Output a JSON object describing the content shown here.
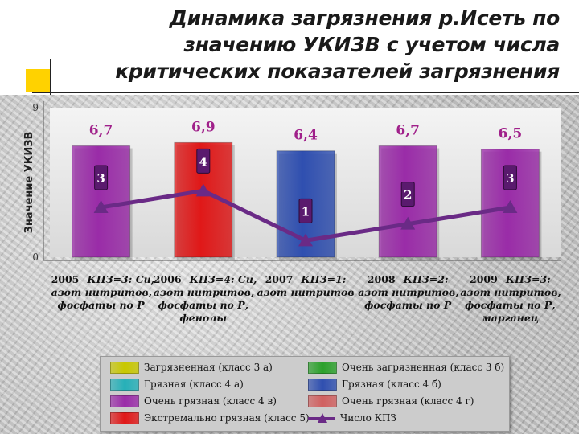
{
  "title": {
    "line1": "Динамика загрязнения р.Исеть по",
    "line2": "значению УКИЗВ с учетом числа",
    "line3": "критических показателей загрязнения"
  },
  "colors": {
    "accent_yellow": "#ffd200",
    "class3a": "#c8c800",
    "class3b": "#2aa02a",
    "class4a": "#26b0b8",
    "class4b": "#2f4fb0",
    "class4v": "#9a2ca8",
    "class4g": "#d06060",
    "class5": "#e01818",
    "kpz_line": "#6a2a86",
    "value_label": "#a0208a"
  },
  "chart_data": {
    "type": "bar",
    "title": "Динамика загрязнения р.Исеть по значению УКИЗВ с учетом числа критических показателей загрязнения",
    "ylabel": "Значение УКИЗВ",
    "ylim": [
      0,
      9
    ],
    "yticks": [
      "0",
      "9"
    ],
    "categories": [
      "2005",
      "2006",
      "2007",
      "2008",
      "2009"
    ],
    "series": [
      {
        "values": [
          6.7,
          6.9,
          6.4,
          6.7,
          6.5
        ],
        "value_labels": [
          "6,7",
          "6,9",
          "6,4",
          "6,7",
          "6,5"
        ],
        "bar_colors": [
          "#9a2ca8",
          "#e01818",
          "#2f4fb0",
          "#9a2ca8",
          "#9a2ca8"
        ]
      },
      {
        "name": "Число КПЗ",
        "type": "line",
        "values": [
          3,
          4,
          1,
          2,
          3
        ],
        "value_labels": [
          "3",
          "4",
          "1",
          "2",
          "3"
        ]
      }
    ],
    "annotations": [
      {
        "year": "2005",
        "text": [
          "КПЗ=3: Cu,",
          "азот нитритов,",
          "фосфаты по Р"
        ]
      },
      {
        "year": "2006",
        "text": [
          "КПЗ=4: Cu,",
          "азот нитритов,",
          "фосфаты по Р,",
          "фенолы"
        ]
      },
      {
        "year": "2007",
        "text": [
          "КПЗ=1:",
          "азот нитритов"
        ]
      },
      {
        "year": "2008",
        "text": [
          "КПЗ=2:",
          "азот нитритов,",
          "фосфаты по Р"
        ]
      },
      {
        "year": "2009",
        "text": [
          "КПЗ=3:",
          "азот нитритов,",
          "фосфаты по Р,",
          "марганец"
        ]
      }
    ],
    "legend": {
      "placement": "bottom",
      "items": [
        {
          "label": "Загрязненная (класс 3 а)",
          "color": "#c8c800",
          "kind": "swatch"
        },
        {
          "label": "Очень загрязненная (класс 3 б)",
          "color": "#2aa02a",
          "kind": "swatch"
        },
        {
          "label": "Грязная (класс 4 а)",
          "color": "#26b0b8",
          "kind": "swatch"
        },
        {
          "label": "Грязная (класс 4 б)",
          "color": "#2f4fb0",
          "kind": "swatch"
        },
        {
          "label": "Очень грязная (класс 4 в)",
          "color": "#9a2ca8",
          "kind": "swatch"
        },
        {
          "label": "Очень грязная (класс 4 г)",
          "color": "#d06060",
          "kind": "swatch"
        },
        {
          "label": "Экстремально грязная (класс 5)",
          "color": "#e01818",
          "kind": "swatch"
        },
        {
          "label": "Число КПЗ",
          "color": "#6a2a86",
          "kind": "line"
        }
      ]
    },
    "grid": false
  }
}
